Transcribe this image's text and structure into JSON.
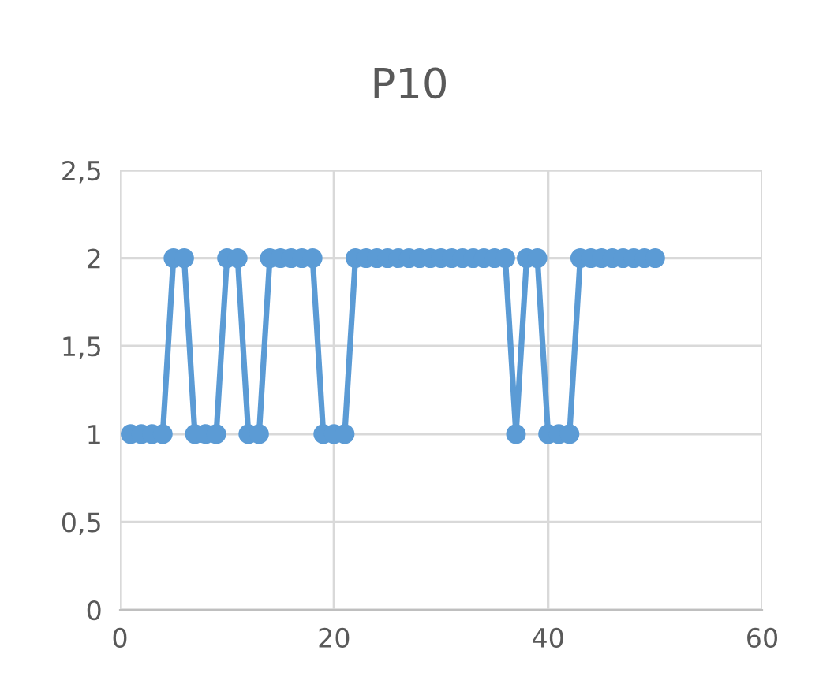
{
  "chart_data": {
    "type": "line",
    "title": "P10",
    "x": [
      1,
      2,
      3,
      4,
      5,
      6,
      7,
      8,
      9,
      10,
      11,
      12,
      13,
      14,
      15,
      16,
      17,
      18,
      19,
      20,
      21,
      22,
      23,
      24,
      25,
      26,
      27,
      28,
      29,
      30,
      31,
      32,
      33,
      34,
      35,
      36,
      37,
      38,
      39,
      40,
      41,
      42,
      43,
      44,
      45,
      46,
      47,
      48,
      49,
      50
    ],
    "series": [
      {
        "color": "#5b9bd5",
        "values": [
          1,
          1,
          1,
          1,
          2,
          2,
          1,
          1,
          1,
          2,
          2,
          1,
          1,
          2,
          2,
          2,
          2,
          2,
          1,
          1,
          1,
          2,
          2,
          2,
          2,
          2,
          2,
          2,
          2,
          2,
          2,
          2,
          2,
          2,
          2,
          2,
          1,
          2,
          2,
          1,
          1,
          1,
          2,
          2,
          2,
          2,
          2,
          2,
          2,
          2
        ]
      }
    ],
    "xlim": [
      0,
      60
    ],
    "xticks": [
      0,
      20,
      40,
      60
    ],
    "ylim": [
      0,
      2.5
    ],
    "yticks": [
      0,
      {
        "value": 0.5,
        "label": "0,5"
      },
      1,
      {
        "value": 1.5,
        "label": "1,5"
      },
      2,
      {
        "value": 2.5,
        "label": "2,5"
      }
    ],
    "grid": true,
    "marker": "circle",
    "line_style": "solid"
  }
}
